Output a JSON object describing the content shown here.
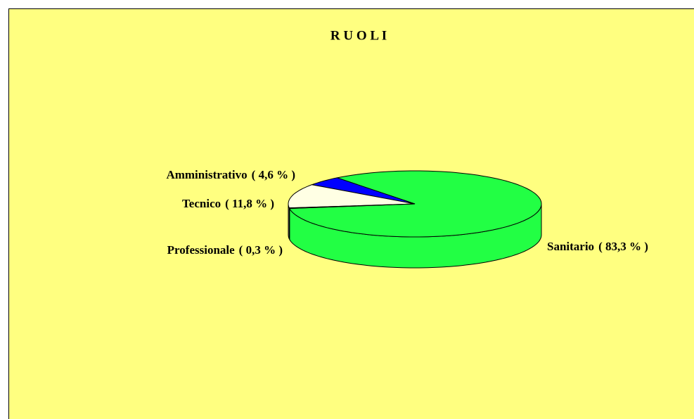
{
  "chart_data": {
    "type": "pie3d",
    "title": "R U O L I",
    "categories": [
      "Sanitario",
      "Amministrativo",
      "Tecnico",
      "Professionale"
    ],
    "values": [
      83.3,
      4.6,
      11.8,
      0.3
    ],
    "value_labels": [
      "( 83,3 % )",
      "( 4,6 % )",
      "( 11,8 % )",
      "( 0,3 % )"
    ],
    "colors": [
      "#22ff44",
      "#0000ff",
      "#ffffe4",
      "#e6e6e6"
    ]
  }
}
